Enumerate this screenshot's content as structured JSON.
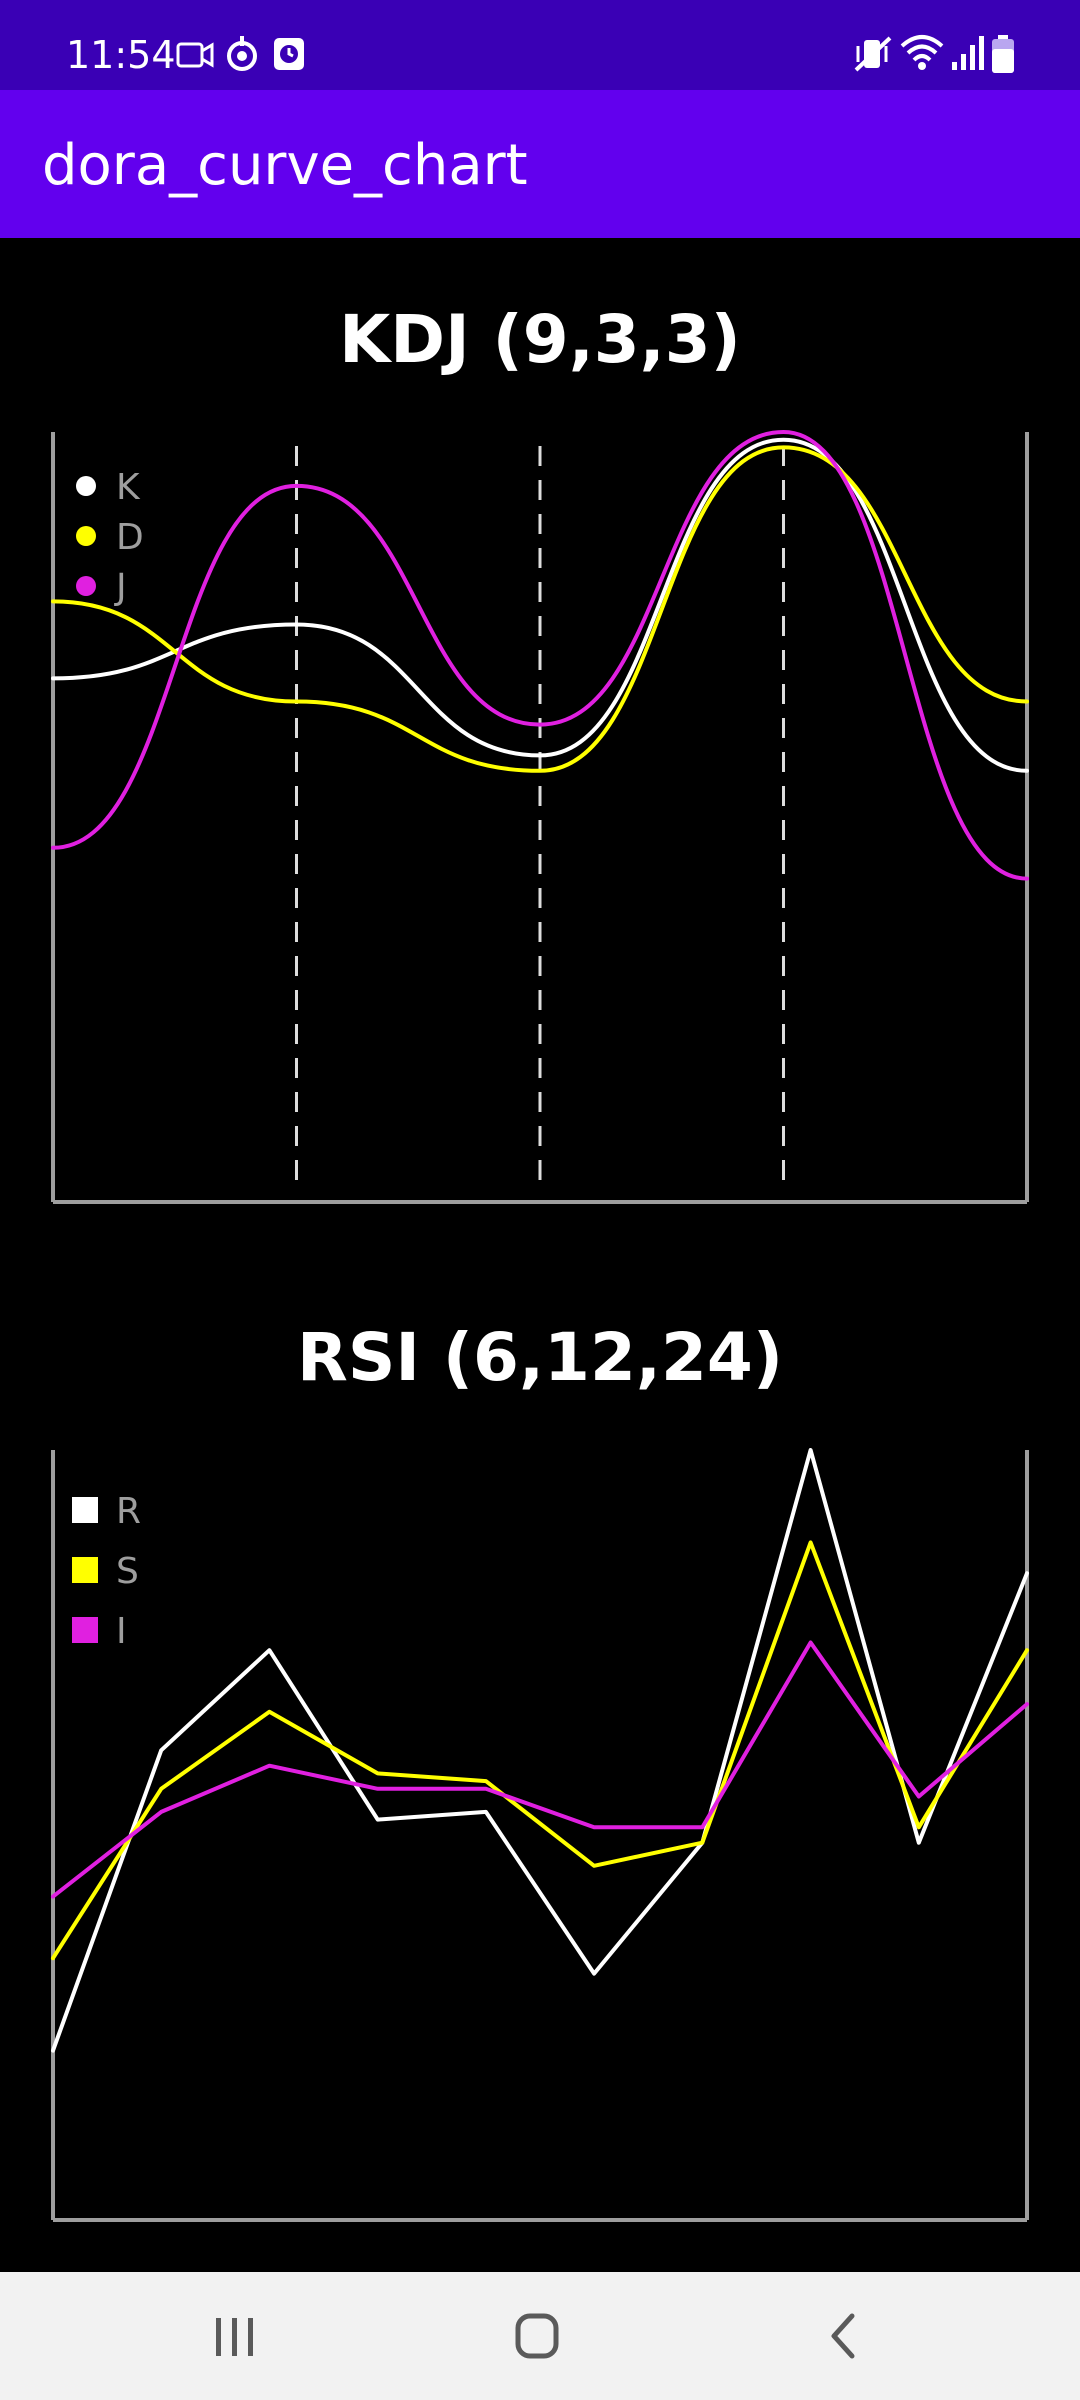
{
  "status_bar": {
    "time": "11:54",
    "left_icons": [
      "video-camera-icon",
      "signal-sync-icon",
      "clock-badge-icon"
    ],
    "right_icons": [
      "vibrate-mute-icon",
      "wifi-icon",
      "cell-signal-icon",
      "battery-icon"
    ]
  },
  "app_bar": {
    "title": "dora_curve_chart"
  },
  "colors": {
    "status_bar": "#3a00b5",
    "app_bar": "#6200ee",
    "background": "#000000",
    "axis": "#9e9e9e",
    "grid": "#dddddd",
    "nav_bar": "#f2f2f2"
  },
  "chart_data": [
    {
      "type": "line",
      "curve": "smooth",
      "title": "KDJ (9,3,3)",
      "x": [
        0,
        1,
        2,
        3,
        4
      ],
      "ylim": [
        0,
        100
      ],
      "vertical_dashed_gridlines_at_x": [
        1,
        2,
        3
      ],
      "legend": "top-left",
      "legend_marker": "circle",
      "series": [
        {
          "name": "K",
          "color": "#ffffff",
          "values": [
            68,
            75,
            58,
            99,
            56
          ]
        },
        {
          "name": "D",
          "color": "#ffff00",
          "values": [
            78,
            65,
            56,
            98,
            65
          ]
        },
        {
          "name": "J",
          "color": "#e020e0",
          "values": [
            46,
            93,
            62,
            100,
            42
          ]
        }
      ]
    },
    {
      "type": "line",
      "title": "RSI (6,12,24)",
      "x": [
        0,
        1,
        2,
        3,
        4,
        5,
        6,
        7,
        8,
        9
      ],
      "ylim": [
        0,
        100
      ],
      "legend": "top-left",
      "legend_marker": "square",
      "series": [
        {
          "name": "R",
          "color": "#ffffff",
          "values": [
            22,
            61,
            74,
            52,
            53,
            32,
            49,
            100,
            49,
            84
          ]
        },
        {
          "name": "S",
          "color": "#ffff00",
          "values": [
            34,
            56,
            66,
            58,
            57,
            46,
            49,
            88,
            51,
            74
          ]
        },
        {
          "name": "I",
          "color": "#e020e0",
          "values": [
            42,
            53,
            59,
            56,
            56,
            51,
            51,
            75,
            55,
            67
          ]
        }
      ]
    }
  ],
  "nav_bar": {
    "recents": "recents-icon",
    "home": "home-icon",
    "back": "back-icon"
  }
}
